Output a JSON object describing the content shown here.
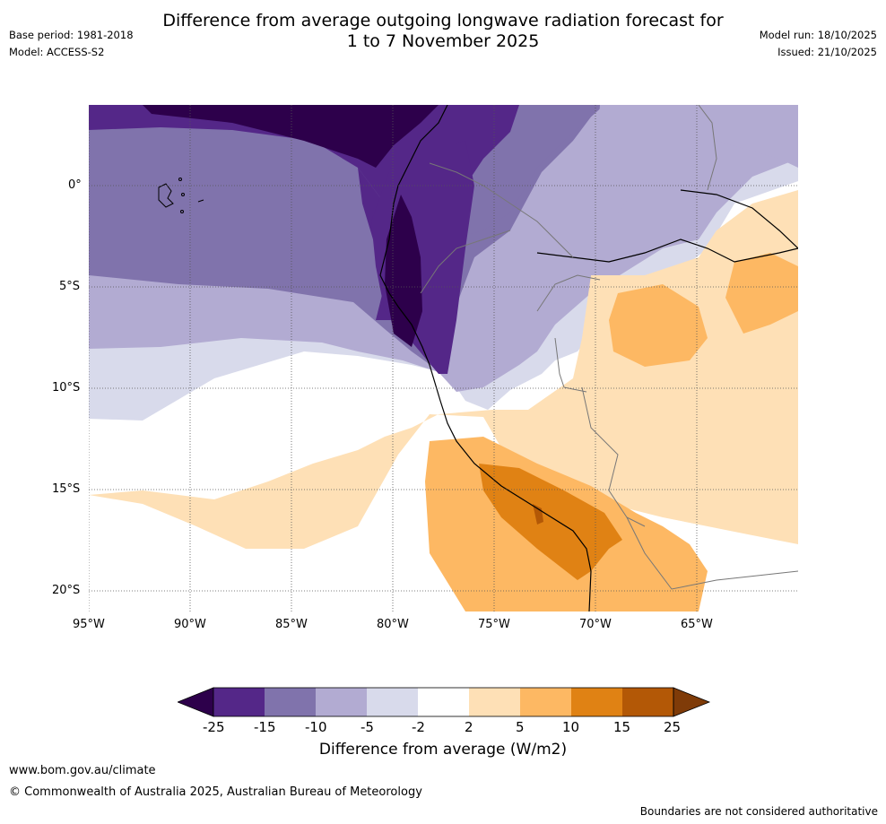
{
  "title": {
    "line1": "Difference from average outgoing longwave radiation forecast for",
    "line2": "1 to 7 November 2025"
  },
  "meta_left": {
    "base_period": "Base period: 1981-2018",
    "model": "Model: ACCESS-S2"
  },
  "meta_right": {
    "model_run": "Model run: 18/10/2025",
    "issued": "Issued: 21/10/2025"
  },
  "axes": {
    "lat_labels": [
      "0°",
      "5°S",
      "10°S",
      "15°S",
      "20°S"
    ],
    "lon_labels": [
      "95°W",
      "90°W",
      "85°W",
      "80°W",
      "75°W",
      "70°W",
      "65°W"
    ]
  },
  "colorbar": {
    "tick_labels": [
      "-25",
      "-15",
      "-10",
      "-5",
      "-2",
      "2",
      "5",
      "10",
      "15",
      "25"
    ],
    "title": "Difference from average (W/m2)",
    "colors": [
      "#2d004b",
      "#542788",
      "#8073ac",
      "#b2abd2",
      "#d8daeb",
      "#ffffff",
      "#fee0b6",
      "#fdb863",
      "#e08214",
      "#b35806",
      "#7f3b08"
    ]
  },
  "footer": {
    "website": "www.bom.gov.au/climate",
    "copyright": "© Commonwealth of Australia 2025, Australian Bureau of Meteorology",
    "disclaimer": "Boundaries are not considered authoritative"
  }
}
